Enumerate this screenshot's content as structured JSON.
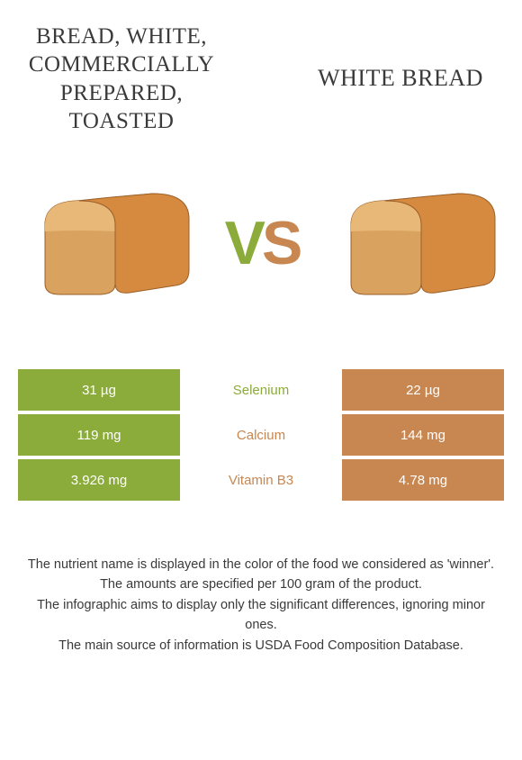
{
  "colors": {
    "left_food": "#8bab3a",
    "right_food": "#c88650",
    "text": "#3a3a3a",
    "white": "#ffffff"
  },
  "titles": {
    "left": "Bread, white, commercially prepared, toasted",
    "right": "White Bread"
  },
  "vs": {
    "v": "V",
    "s": "S"
  },
  "nutrients": [
    {
      "name": "Selenium",
      "left": "31 µg",
      "right": "22 µg",
      "winner": "left"
    },
    {
      "name": "Calcium",
      "left": "119 mg",
      "right": "144 mg",
      "winner": "right"
    },
    {
      "name": "Vitamin B3",
      "left": "3.926 mg",
      "right": "4.78 mg",
      "winner": "right"
    }
  ],
  "notes": [
    "The nutrient name is displayed in the color of the food we considered as 'winner'.",
    "The amounts are specified per 100 gram of the product.",
    "The infographic aims to display only the significant differences, ignoring minor ones.",
    "The main source of information is USDA Food Composition Database."
  ],
  "bread_svg": {
    "top_fill": "#d68a3f",
    "side_fill": "#c17a36",
    "front_top": "#e8b878",
    "front_bottom": "#d9a35f",
    "stroke": "#9a5f28"
  }
}
